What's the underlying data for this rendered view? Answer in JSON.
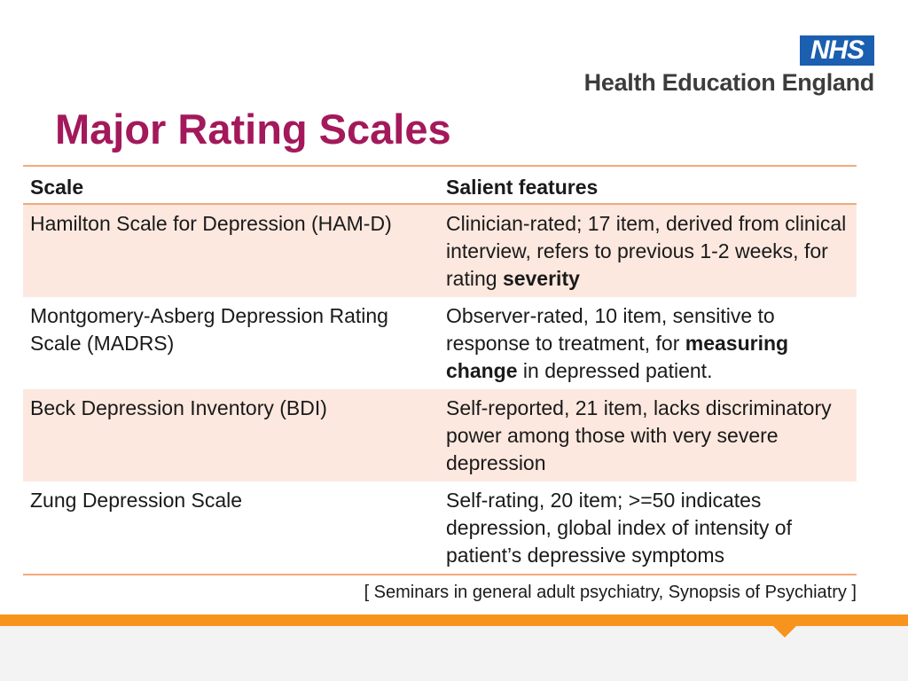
{
  "logo": {
    "mark": "NHS",
    "org_name": "Health Education England"
  },
  "title": "Major Rating Scales",
  "table": {
    "headers": [
      "Scale",
      "Salient features"
    ],
    "rows": [
      {
        "scale": "Hamilton Scale for Depression (HAM-D)",
        "features": [
          {
            "text": "Clinician-rated; 17 item, derived from clinical interview, refers to previous 1-2 weeks, for rating ",
            "bold": false
          },
          {
            "text": "severity",
            "bold": true
          }
        ]
      },
      {
        "scale": "Montgomery-Asberg Depression Rating Scale (MADRS)",
        "features": [
          {
            "text": " Observer-rated, 10 item, sensitive to response to treatment, for ",
            "bold": false
          },
          {
            "text": "measuring change",
            "bold": true
          },
          {
            "text": " in depressed patient.",
            "bold": false
          }
        ]
      },
      {
        "scale": "Beck Depression Inventory (BDI)",
        "features": [
          {
            "text": "Self-reported, 21 item, lacks discriminatory power among those with very severe depression",
            "bold": false
          }
        ]
      },
      {
        "scale": "Zung Depression Scale",
        "features": [
          {
            "text": "Self-rating, 20 item; >=50 indicates depression, global index of intensity of patient’s depressive symptoms",
            "bold": false
          }
        ]
      }
    ]
  },
  "citation": "[ Seminars in general adult psychiatry, Synopsis of Psychiatry ]",
  "colors": {
    "title": "#a3195b",
    "nhs_blue": "#1b5fb0",
    "row_shade": "#fce8df",
    "rule": "#f4a97a",
    "footer_orange": "#f7941e"
  }
}
